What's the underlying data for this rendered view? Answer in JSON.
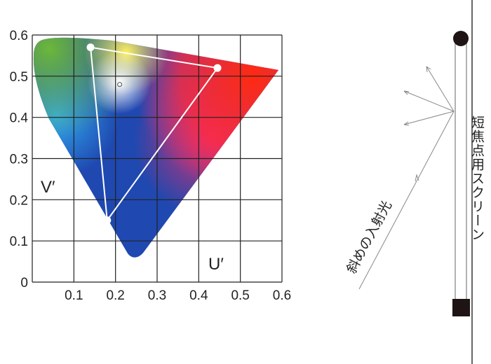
{
  "chart": {
    "type": "diagram",
    "x_axis_label": "U′",
    "y_axis_label": "V′",
    "x_ticks": [
      "0.1",
      "0.2",
      "0.3",
      "0.4",
      "0.5",
      "0.6"
    ],
    "y_ticks": [
      "0",
      "0.1",
      "0.2",
      "0.3",
      "0.4",
      "0.5",
      "0.6"
    ],
    "xlim": [
      0,
      0.6
    ],
    "ylim": [
      0,
      0.6
    ],
    "grid": true,
    "gamut_triangle": [
      {
        "u": 0.14,
        "v": 0.57
      },
      {
        "u": 0.445,
        "v": 0.52
      },
      {
        "u": 0.18,
        "v": 0.15
      }
    ],
    "white_point": {
      "u": 0.21,
      "v": 0.48
    },
    "colors": {
      "triangle": "#ffffff",
      "grid": "#222222"
    }
  },
  "screen_diagram": {
    "screen_label": "短焦点用スクリーン",
    "incident_label": "斜めの入射光",
    "colors": {
      "screen": "#1e1414",
      "rays": "#888888"
    }
  }
}
